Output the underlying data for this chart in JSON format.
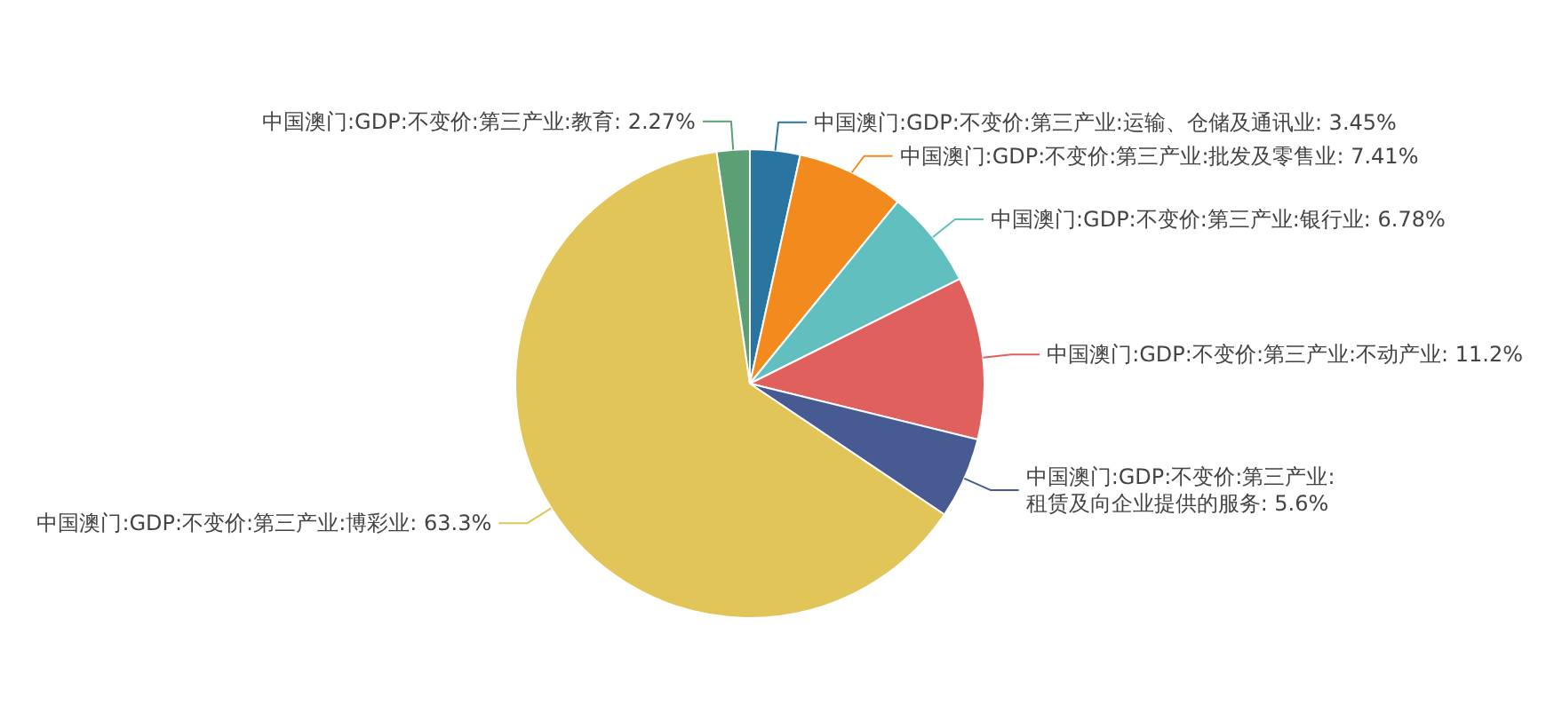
{
  "chart_data": {
    "type": "pie",
    "categories": [
      "中国澳门:GDP:不变价:第三产业:运输、仓储及通讯业",
      "中国澳门:GDP:不变价:第三产业:批发及零售业",
      "中国澳门:GDP:不变价:第三产业:银行业",
      "中国澳门:GDP:不变价:第三产业:不动产业",
      "中国澳门:GDP:不变价:第三产业:租赁及向企业提供的服务",
      "中国澳门:GDP:不变价:第三产业:博彩业",
      "中国澳门:GDP:不变价:第三产业:教育"
    ],
    "values": [
      3.45,
      7.41,
      6.78,
      11.2,
      5.6,
      63.3,
      2.27
    ],
    "colors": [
      "#2a74a2",
      "#f28a1e",
      "#62bfc0",
      "#e0605e",
      "#485a92",
      "#e2c558",
      "#5d9f74"
    ],
    "value_labels": [
      "3.45%",
      "7.41%",
      "6.78%",
      "11.2%",
      "5.6%",
      "63.3%",
      "2.27%"
    ]
  }
}
